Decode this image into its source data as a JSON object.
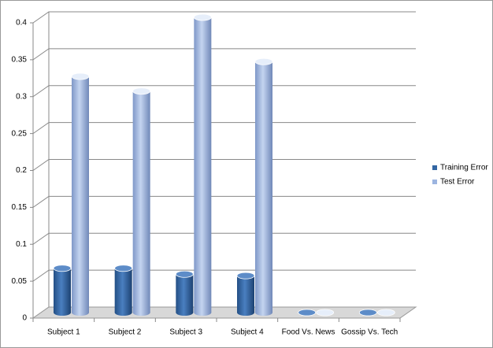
{
  "chart_data": {
    "type": "bar",
    "categories": [
      "Subject 1",
      "Subject 2",
      "Subject 3",
      "Subject 4",
      "Food Vs. News",
      "Gossip Vs. Tech"
    ],
    "series": [
      {
        "name": "Training Error",
        "color": "#3366a3",
        "values": [
          0.06,
          0.06,
          0.052,
          0.05,
          0,
          0
        ]
      },
      {
        "name": "Test Error",
        "color": "#9db5e0",
        "values": [
          0.32,
          0.3,
          0.4,
          0.34,
          0,
          0
        ]
      }
    ],
    "ylim": [
      0,
      0.4
    ],
    "yticks": [
      0,
      0.05,
      0.1,
      0.15,
      0.2,
      0.25,
      0.3,
      0.35,
      0.4
    ],
    "grid": true,
    "legend": "right"
  }
}
